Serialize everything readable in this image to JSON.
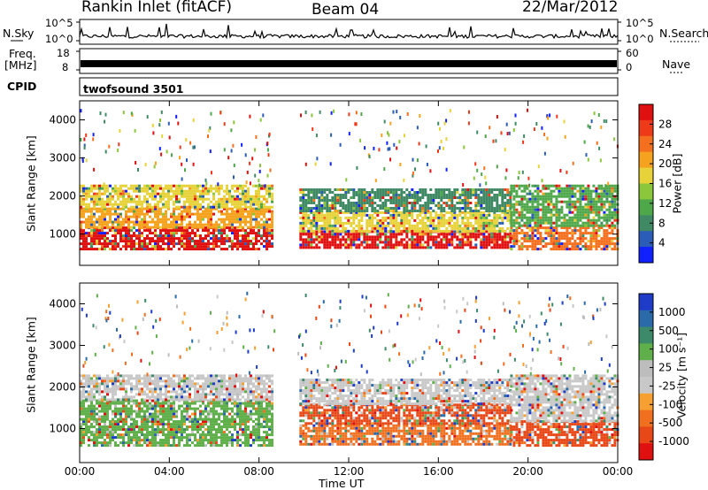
{
  "header": {
    "station": "Rankin Inlet (fitACF)",
    "beam": "Beam 04",
    "date": "22/Mar/2012"
  },
  "status_panels": {
    "nsky_label": "N.Sky",
    "nsky_ticks": [
      "10^5",
      "10^0"
    ],
    "nsearch_label": "N.Search",
    "nsearch_ticks": [
      "10^5",
      "10^0"
    ],
    "freq_label_line1": "Freq.",
    "freq_label_line2": "[MHz]",
    "freq_ticks": [
      "18",
      "8"
    ],
    "nave_label": "Nave",
    "nave_ticks": [
      "60",
      "0"
    ],
    "cpid_label": "CPID",
    "cpid_value": "twofsound 3501"
  },
  "x_axis": {
    "label": "Time UT",
    "ticks": [
      "00:00",
      "04:00",
      "08:00",
      "12:00",
      "16:00",
      "20:00",
      "00:00"
    ]
  },
  "chart_data": [
    {
      "type": "heatmap",
      "title": "Power",
      "ylabel": "Slant Range [km]",
      "xlabel": "",
      "y_ticks": [
        1000,
        2000,
        3000,
        4000
      ],
      "ylim": [
        180,
        4500
      ],
      "xlim_hours": [
        0,
        24
      ],
      "colorbar_label": "Power [dB]",
      "colorbar_ticks": [
        4,
        8,
        12,
        16,
        20,
        24,
        28
      ],
      "colorbar_colors": [
        "#1020ff",
        "#2a5cb8",
        "#3f8a64",
        "#4ea84a",
        "#8cc63a",
        "#e8d23a",
        "#f5a21e",
        "#f5701e",
        "#ee3a18",
        "#e01010"
      ],
      "bands": [
        {
          "t_start": 0.0,
          "t_end": 8.6,
          "r_low": 600,
          "r_high": 1200,
          "level": 28
        },
        {
          "t_start": 0.0,
          "t_end": 8.6,
          "r_low": 1200,
          "r_high": 1700,
          "level": 20
        },
        {
          "t_start": 0.0,
          "t_end": 8.6,
          "r_low": 1700,
          "r_high": 2300,
          "level": 16
        },
        {
          "t_start": 9.8,
          "t_end": 19.2,
          "r_low": 650,
          "r_high": 1100,
          "level": 28
        },
        {
          "t_start": 9.8,
          "t_end": 19.2,
          "r_low": 1100,
          "r_high": 1600,
          "level": 16
        },
        {
          "t_start": 9.8,
          "t_end": 19.2,
          "r_low": 1600,
          "r_high": 2200,
          "level": 8
        },
        {
          "t_start": 19.2,
          "t_end": 24.0,
          "r_low": 600,
          "r_high": 1200,
          "level": 24
        },
        {
          "t_start": 19.2,
          "t_end": 24.0,
          "r_low": 1200,
          "r_high": 2300,
          "level": 12
        }
      ]
    },
    {
      "type": "heatmap",
      "title": "Velocity",
      "ylabel": "Slant Range [km]",
      "xlabel": "Time UT",
      "y_ticks": [
        1000,
        2000,
        3000,
        4000
      ],
      "ylim": [
        180,
        4500
      ],
      "xlim_hours": [
        0,
        24
      ],
      "colorbar_label": "Velocity [m s⁻¹]",
      "colorbar_ticks": [
        1000,
        500,
        100,
        25,
        -25,
        -100,
        -500,
        -1000
      ],
      "colorbar_colors": [
        "#1e3cc8",
        "#2a6aa8",
        "#3d8a6a",
        "#5fb04a",
        "#bdbdbd",
        "#c8c8c8",
        "#f5a030",
        "#f07020",
        "#e84818",
        "#e01010"
      ],
      "bands": [
        {
          "t_start": 0.0,
          "t_end": 8.6,
          "r_low": 600,
          "r_high": 1200,
          "level": 100
        },
        {
          "t_start": 0.0,
          "t_end": 8.6,
          "r_low": 1200,
          "r_high": 1700,
          "level": 100
        },
        {
          "t_start": 0.0,
          "t_end": 8.6,
          "r_low": 1700,
          "r_high": 2300,
          "level": 0
        },
        {
          "t_start": 9.8,
          "t_end": 19.2,
          "r_low": 650,
          "r_high": 1100,
          "level": -100
        },
        {
          "t_start": 9.8,
          "t_end": 19.2,
          "r_low": 1100,
          "r_high": 1600,
          "level": -500
        },
        {
          "t_start": 9.8,
          "t_end": 19.2,
          "r_low": 1600,
          "r_high": 2200,
          "level": 0
        },
        {
          "t_start": 19.2,
          "t_end": 24.0,
          "r_low": 600,
          "r_high": 1200,
          "level": -500
        },
        {
          "t_start": 19.2,
          "t_end": 24.0,
          "r_low": 1200,
          "r_high": 2300,
          "level": 0
        }
      ]
    }
  ]
}
